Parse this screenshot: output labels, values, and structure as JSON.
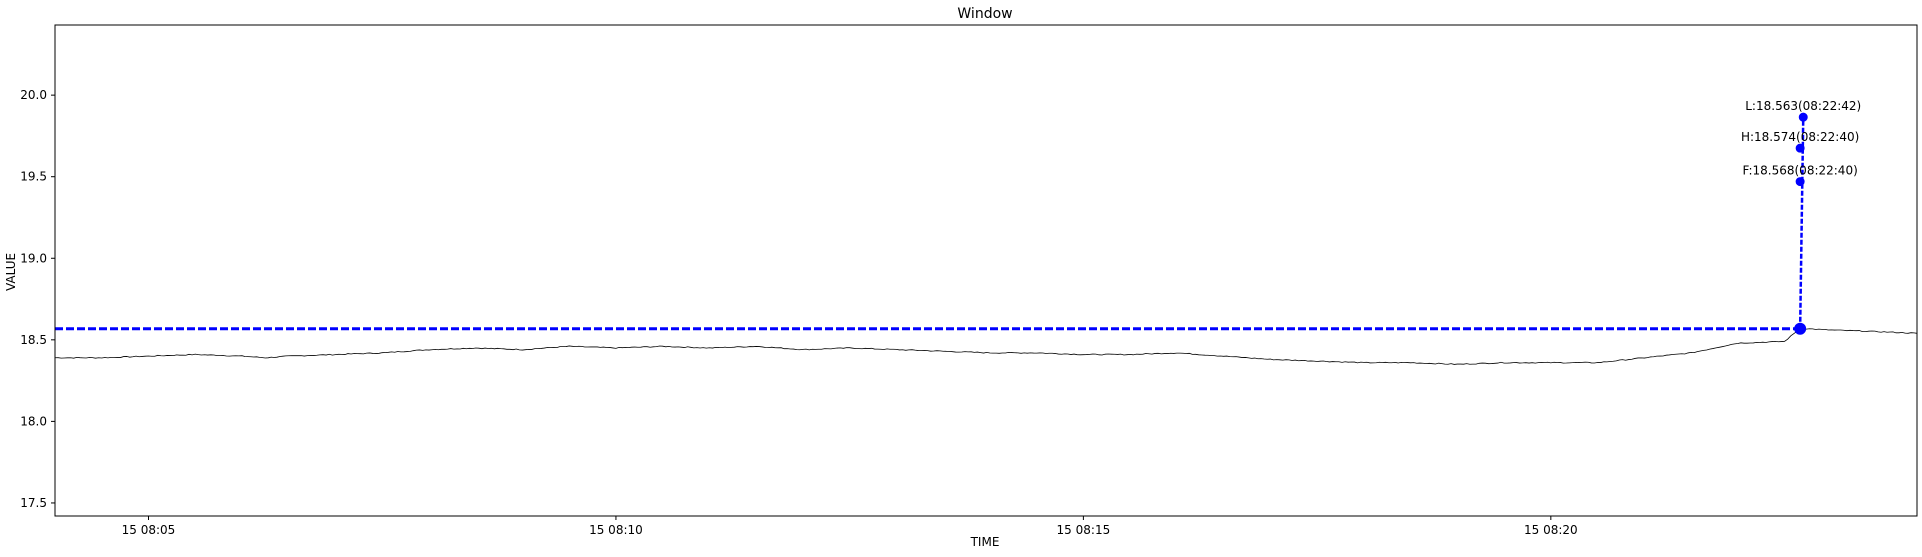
{
  "chart_data": {
    "type": "line",
    "title": "Window",
    "xlabel": "TIME",
    "ylabel": "VALUE",
    "x_range": [
      "15 08:04:00",
      "15 08:23:55"
    ],
    "ylim": [
      17.42,
      20.43
    ],
    "grid": false,
    "x_ticks": [
      {
        "t": "15 08:05:00",
        "label": "15 08:05"
      },
      {
        "t": "15 08:10:00",
        "label": "15 08:10"
      },
      {
        "t": "15 08:15:00",
        "label": "15 08:15"
      },
      {
        "t": "15 08:20:00",
        "label": "15 08:20"
      }
    ],
    "y_ticks": [
      17.5,
      18.0,
      18.5,
      19.0,
      19.5,
      20.0
    ],
    "y_tick_labels": [
      "17.5",
      "18.0",
      "18.5",
      "19.0",
      "19.5",
      "20.0"
    ],
    "series": [
      {
        "color": "#000000",
        "points": [
          [
            "15 08:04:00",
            18.39
          ],
          [
            "15 08:04:30",
            18.39
          ],
          [
            "15 08:05:00",
            18.4
          ],
          [
            "15 08:05:30",
            18.41
          ],
          [
            "15 08:06:00",
            18.4
          ],
          [
            "15 08:06:15",
            18.39
          ],
          [
            "15 08:06:30",
            18.4
          ],
          [
            "15 08:07:00",
            18.41
          ],
          [
            "15 08:07:30",
            18.42
          ],
          [
            "15 08:08:00",
            18.44
          ],
          [
            "15 08:08:30",
            18.45
          ],
          [
            "15 08:09:00",
            18.44
          ],
          [
            "15 08:09:30",
            18.46
          ],
          [
            "15 08:10:00",
            18.45
          ],
          [
            "15 08:10:30",
            18.46
          ],
          [
            "15 08:11:00",
            18.45
          ],
          [
            "15 08:11:30",
            18.46
          ],
          [
            "15 08:12:00",
            18.44
          ],
          [
            "15 08:12:30",
            18.45
          ],
          [
            "15 08:13:00",
            18.44
          ],
          [
            "15 08:13:30",
            18.43
          ],
          [
            "15 08:14:00",
            18.42
          ],
          [
            "15 08:14:30",
            18.42
          ],
          [
            "15 08:15:00",
            18.41
          ],
          [
            "15 08:15:30",
            18.41
          ],
          [
            "15 08:16:00",
            18.42
          ],
          [
            "15 08:16:30",
            18.4
          ],
          [
            "15 08:17:00",
            18.38
          ],
          [
            "15 08:17:30",
            18.37
          ],
          [
            "15 08:18:00",
            18.36
          ],
          [
            "15 08:18:30",
            18.36
          ],
          [
            "15 08:19:00",
            18.35
          ],
          [
            "15 08:19:30",
            18.36
          ],
          [
            "15 08:20:00",
            18.36
          ],
          [
            "15 08:20:30",
            18.36
          ],
          [
            "15 08:21:00",
            18.39
          ],
          [
            "15 08:21:30",
            18.42
          ],
          [
            "15 08:22:00",
            18.48
          ],
          [
            "15 08:22:30",
            18.49
          ],
          [
            "15 08:22:40",
            18.57
          ],
          [
            "15 08:23:00",
            18.56
          ],
          [
            "15 08:23:30",
            18.55
          ],
          [
            "15 08:23:55",
            18.54
          ]
        ]
      }
    ],
    "reference_line": {
      "y": 18.568,
      "color": "#0000ff",
      "style": "dashed"
    },
    "markers": [
      {
        "t": "15 08:22:40",
        "y": 18.568
      },
      {
        "t": "15 08:22:40",
        "y": 19.47,
        "label": "F:18.568(08:22:40)"
      },
      {
        "t": "15 08:22:40",
        "y": 19.675,
        "label": "H:18.574(08:22:40)"
      },
      {
        "t": "15 08:22:42",
        "y": 19.865,
        "label": "L:18.563(08:22:42)"
      }
    ],
    "marker_color": "#0000ff"
  }
}
